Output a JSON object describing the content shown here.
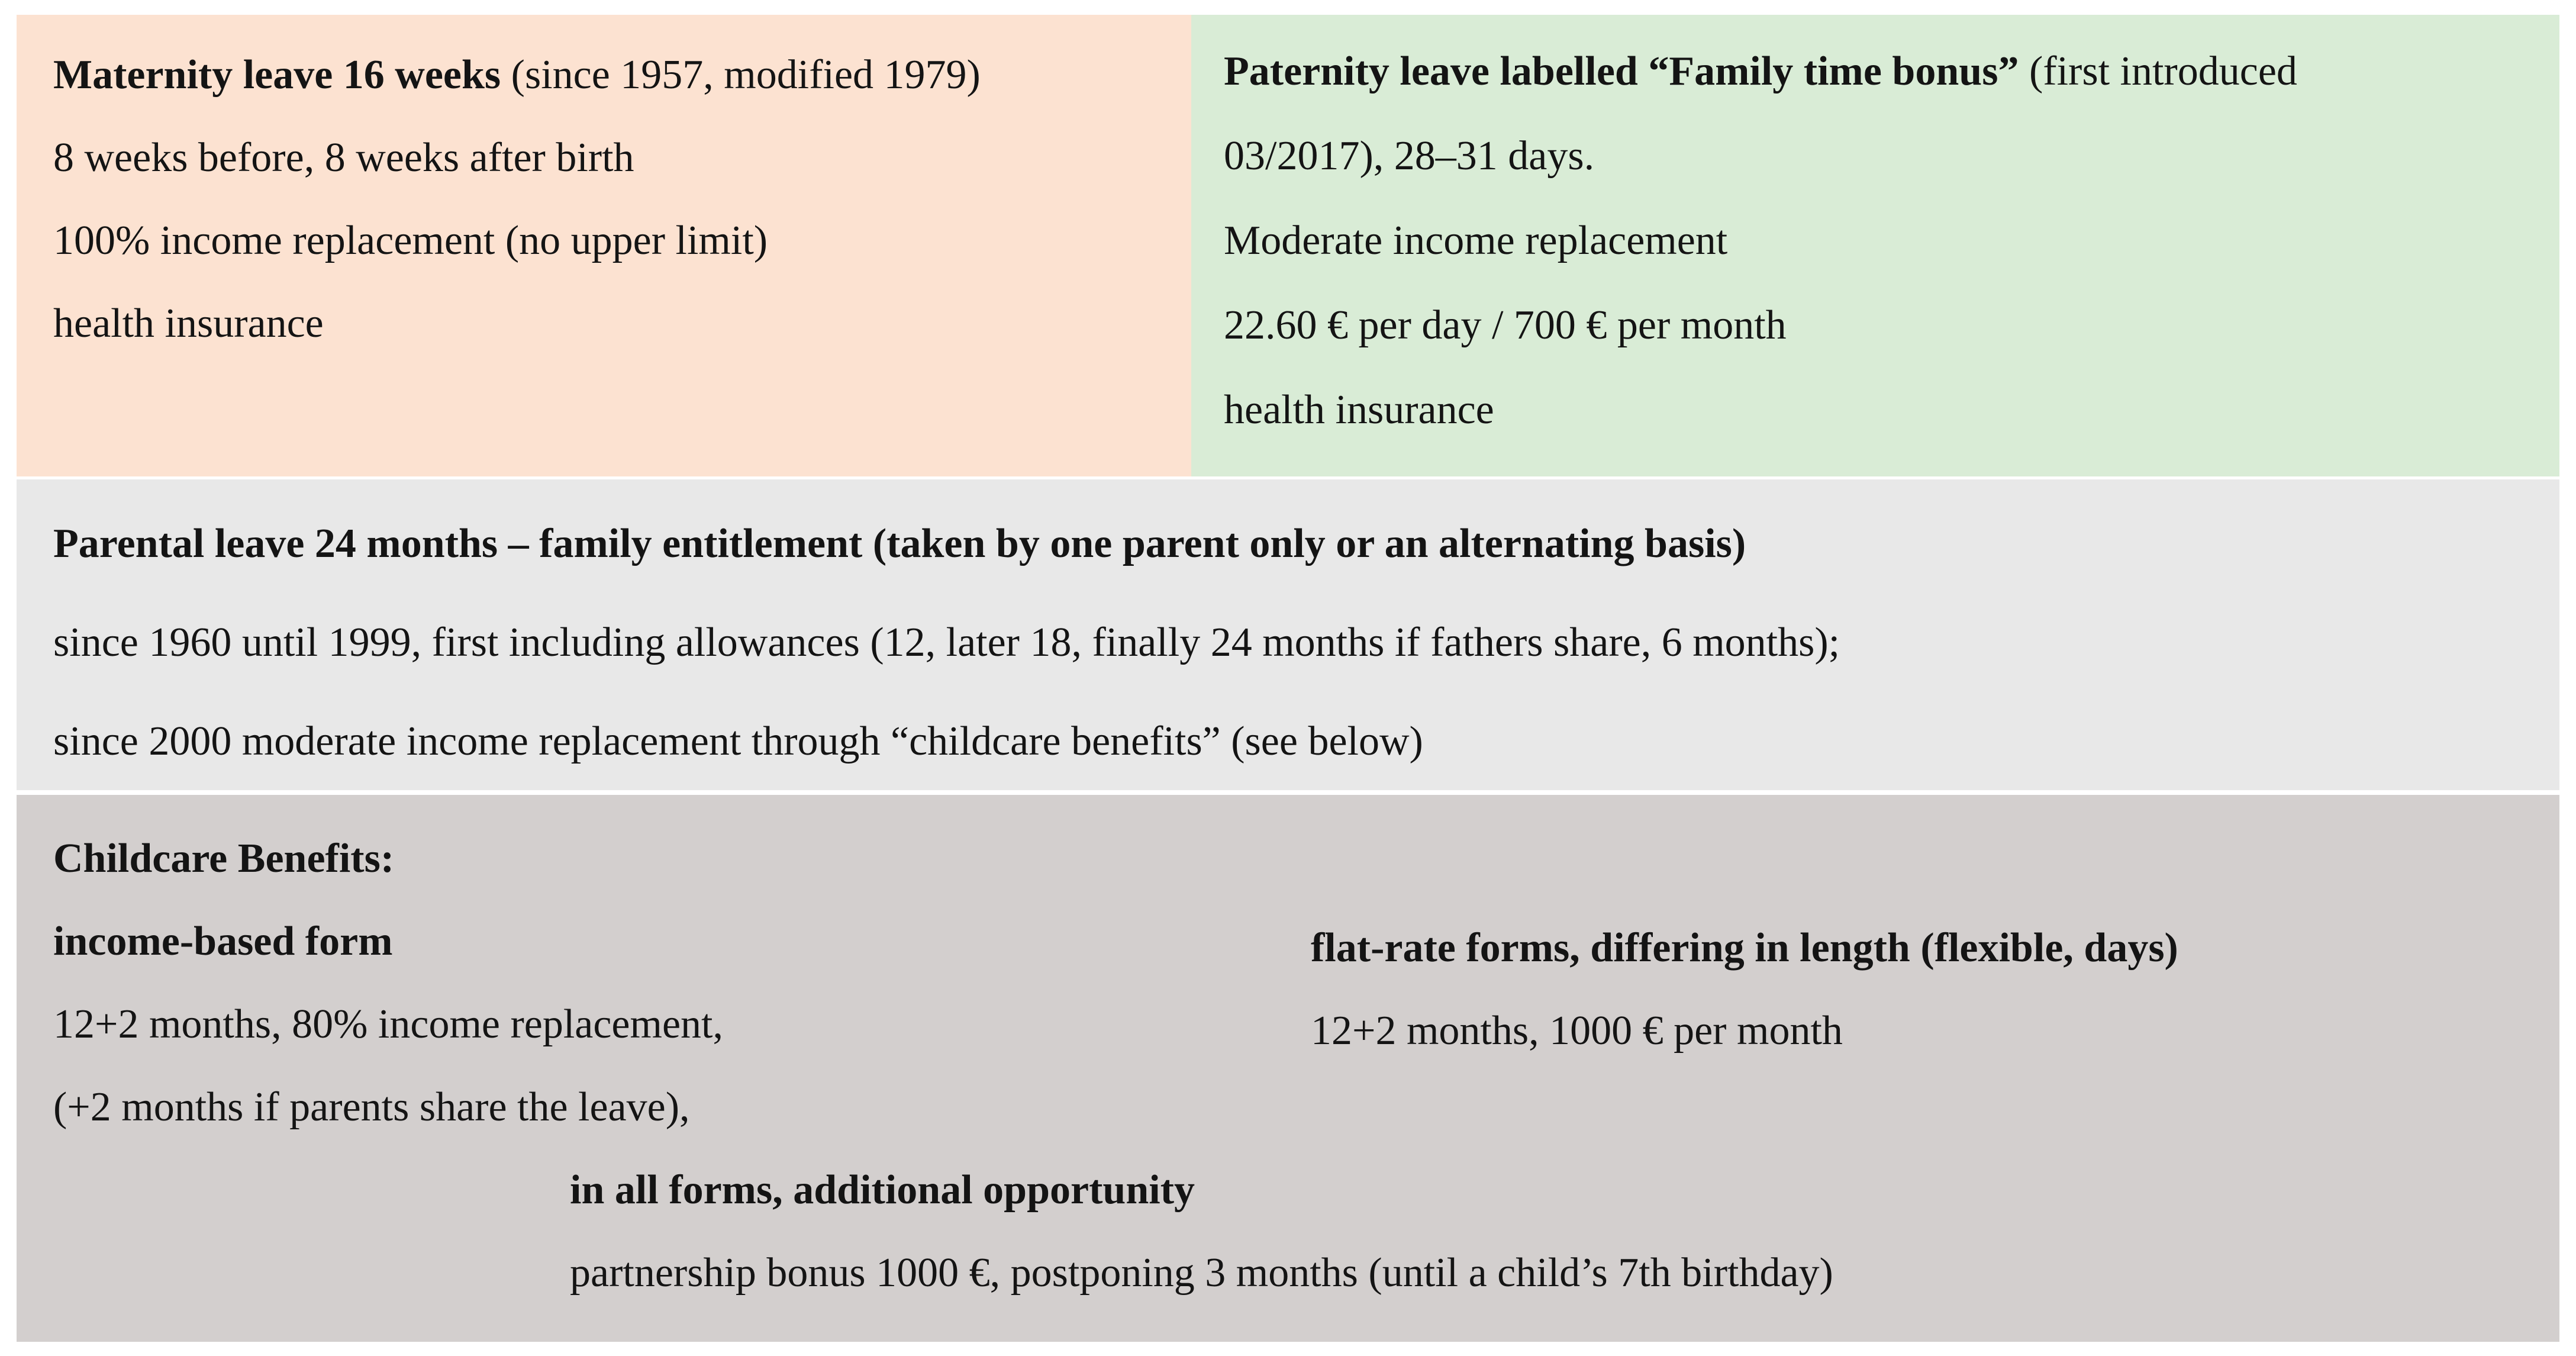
{
  "maternity": {
    "bg": "#fce2d1",
    "title_bold": "Maternity leave 16 weeks",
    "title_rest": " (since 1957, modified 1979)",
    "lines": [
      "8 weeks before, 8 weeks after birth",
      "100% income replacement (no upper limit)",
      "health insurance"
    ]
  },
  "paternity": {
    "bg": "#d9ecd6",
    "title_bold": "Paternity leave labelled “Family time bonus”",
    "title_rest": " (first introduced",
    "lines": [
      "03/2017), 28–31 days.",
      "Moderate income replacement",
      "22.60 € per day / 700 € per month",
      "health insurance"
    ]
  },
  "parental": {
    "bg": "#e8e8e8",
    "title": "Parental leave 24 months – family entitlement (taken by one parent only or an alternating basis)",
    "lines": [
      "since 1960 until 1999, first including allowances (12, later 18, finally 24 months if fathers share, 6 months);",
      "since 2000 moderate income replacement through “childcare benefits” (see below)"
    ]
  },
  "childcare": {
    "bg": "#d3cfce",
    "title": "Childcare Benefits:",
    "income_based": {
      "heading": "income-based form",
      "lines": [
        "12+2 months, 80% income replacement,",
        "(+2 months if parents share the leave),"
      ]
    },
    "flat_rate": {
      "heading": "flat-rate forms, differing in length (flexible, days)",
      "lines": [
        "12+2 months, 1000 € per month"
      ]
    },
    "all_forms": {
      "heading": "in all forms, additional opportunity",
      "lines": [
        "partnership bonus 1000 €, postponing 3 months (until a child’s 7th birthday)"
      ]
    }
  }
}
